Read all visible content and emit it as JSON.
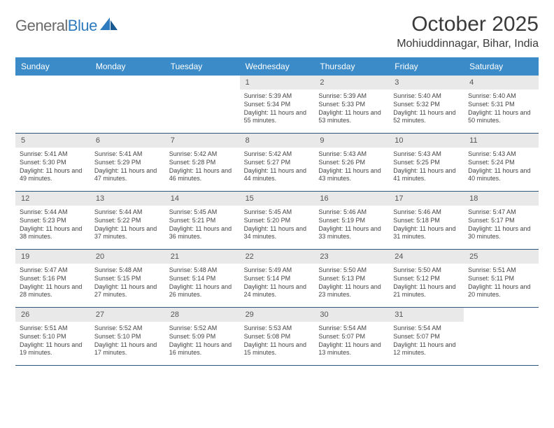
{
  "brand": {
    "name_gray": "General",
    "name_blue": "Blue"
  },
  "title": "October 2025",
  "location": "Mohiuddinnagar, Bihar, India",
  "colors": {
    "header_bg": "#3b8bc9",
    "header_text": "#ffffff",
    "daynum_bg": "#e9e9e9",
    "week_border": "#30557a",
    "logo_gray": "#6a6a6a",
    "logo_blue": "#2f7bbf"
  },
  "day_labels": [
    "Sunday",
    "Monday",
    "Tuesday",
    "Wednesday",
    "Thursday",
    "Friday",
    "Saturday"
  ],
  "weeks": [
    [
      null,
      null,
      null,
      {
        "n": "1",
        "sr": "5:39 AM",
        "ss": "5:34 PM",
        "dl": "11 hours and 55 minutes."
      },
      {
        "n": "2",
        "sr": "5:39 AM",
        "ss": "5:33 PM",
        "dl": "11 hours and 53 minutes."
      },
      {
        "n": "3",
        "sr": "5:40 AM",
        "ss": "5:32 PM",
        "dl": "11 hours and 52 minutes."
      },
      {
        "n": "4",
        "sr": "5:40 AM",
        "ss": "5:31 PM",
        "dl": "11 hours and 50 minutes."
      }
    ],
    [
      {
        "n": "5",
        "sr": "5:41 AM",
        "ss": "5:30 PM",
        "dl": "11 hours and 49 minutes."
      },
      {
        "n": "6",
        "sr": "5:41 AM",
        "ss": "5:29 PM",
        "dl": "11 hours and 47 minutes."
      },
      {
        "n": "7",
        "sr": "5:42 AM",
        "ss": "5:28 PM",
        "dl": "11 hours and 46 minutes."
      },
      {
        "n": "8",
        "sr": "5:42 AM",
        "ss": "5:27 PM",
        "dl": "11 hours and 44 minutes."
      },
      {
        "n": "9",
        "sr": "5:43 AM",
        "ss": "5:26 PM",
        "dl": "11 hours and 43 minutes."
      },
      {
        "n": "10",
        "sr": "5:43 AM",
        "ss": "5:25 PM",
        "dl": "11 hours and 41 minutes."
      },
      {
        "n": "11",
        "sr": "5:43 AM",
        "ss": "5:24 PM",
        "dl": "11 hours and 40 minutes."
      }
    ],
    [
      {
        "n": "12",
        "sr": "5:44 AM",
        "ss": "5:23 PM",
        "dl": "11 hours and 38 minutes."
      },
      {
        "n": "13",
        "sr": "5:44 AM",
        "ss": "5:22 PM",
        "dl": "11 hours and 37 minutes."
      },
      {
        "n": "14",
        "sr": "5:45 AM",
        "ss": "5:21 PM",
        "dl": "11 hours and 36 minutes."
      },
      {
        "n": "15",
        "sr": "5:45 AM",
        "ss": "5:20 PM",
        "dl": "11 hours and 34 minutes."
      },
      {
        "n": "16",
        "sr": "5:46 AM",
        "ss": "5:19 PM",
        "dl": "11 hours and 33 minutes."
      },
      {
        "n": "17",
        "sr": "5:46 AM",
        "ss": "5:18 PM",
        "dl": "11 hours and 31 minutes."
      },
      {
        "n": "18",
        "sr": "5:47 AM",
        "ss": "5:17 PM",
        "dl": "11 hours and 30 minutes."
      }
    ],
    [
      {
        "n": "19",
        "sr": "5:47 AM",
        "ss": "5:16 PM",
        "dl": "11 hours and 28 minutes."
      },
      {
        "n": "20",
        "sr": "5:48 AM",
        "ss": "5:15 PM",
        "dl": "11 hours and 27 minutes."
      },
      {
        "n": "21",
        "sr": "5:48 AM",
        "ss": "5:14 PM",
        "dl": "11 hours and 26 minutes."
      },
      {
        "n": "22",
        "sr": "5:49 AM",
        "ss": "5:14 PM",
        "dl": "11 hours and 24 minutes."
      },
      {
        "n": "23",
        "sr": "5:50 AM",
        "ss": "5:13 PM",
        "dl": "11 hours and 23 minutes."
      },
      {
        "n": "24",
        "sr": "5:50 AM",
        "ss": "5:12 PM",
        "dl": "11 hours and 21 minutes."
      },
      {
        "n": "25",
        "sr": "5:51 AM",
        "ss": "5:11 PM",
        "dl": "11 hours and 20 minutes."
      }
    ],
    [
      {
        "n": "26",
        "sr": "5:51 AM",
        "ss": "5:10 PM",
        "dl": "11 hours and 19 minutes."
      },
      {
        "n": "27",
        "sr": "5:52 AM",
        "ss": "5:10 PM",
        "dl": "11 hours and 17 minutes."
      },
      {
        "n": "28",
        "sr": "5:52 AM",
        "ss": "5:09 PM",
        "dl": "11 hours and 16 minutes."
      },
      {
        "n": "29",
        "sr": "5:53 AM",
        "ss": "5:08 PM",
        "dl": "11 hours and 15 minutes."
      },
      {
        "n": "30",
        "sr": "5:54 AM",
        "ss": "5:07 PM",
        "dl": "11 hours and 13 minutes."
      },
      {
        "n": "31",
        "sr": "5:54 AM",
        "ss": "5:07 PM",
        "dl": "11 hours and 12 minutes."
      },
      null
    ]
  ]
}
